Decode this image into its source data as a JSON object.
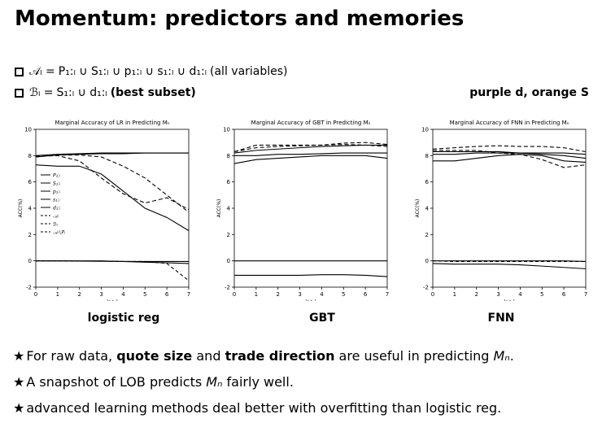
{
  "slide": {
    "title": "Momentum: predictors and memories",
    "def_a_lhs": "𝒜ₗ = ",
    "def_a_rhs": "P₁:ₗ ∪ S₁:ₗ ∪ p₁:ₗ ∪ s₁:ₗ ∪ d₁:ₗ",
    "def_a_note": "(all variables)",
    "def_b_lhs": "ℬₗ = ",
    "def_b_rhs": "S₁:ₗ ∪ d₁:ₗ",
    "def_b_note": "(best subset)",
    "color_note": "purple d, orange S",
    "captions": [
      "logistic reg",
      "GBT",
      "FNN"
    ],
    "bullets": [
      {
        "star": "★",
        "pre": "For raw data, ",
        "b1": "quote size",
        "mid": " and ",
        "b2": "trade direction",
        "post": " are useful in predicting ",
        "math": "Mₙ",
        "end": "."
      },
      {
        "star": "★",
        "pre": "A snapshot of LOB predicts ",
        "math": "Mₙ",
        "post": " fairly well."
      },
      {
        "star": "★",
        "pre": "advanced learning methods deal better with overfitting than logistic reg."
      }
    ]
  },
  "chart_data": [
    {
      "type": "line",
      "title": "Marginal Accuracy of LR in Predicting Mₙ",
      "xlabel": "log₂l",
      "ylabel": "ACC(%)",
      "x": [
        0,
        1,
        2,
        3,
        4,
        5,
        6,
        7
      ],
      "xlim": [
        0,
        7
      ],
      "ylim": [
        -2,
        10
      ],
      "yticks": [
        -2,
        0,
        2,
        4,
        6,
        8,
        10
      ],
      "legend": "left",
      "series": [
        {
          "name": "P₁:ₗ",
          "values": [
            7.9,
            8.05,
            8.1,
            8.15,
            8.15,
            8.2,
            8.2,
            8.2
          ],
          "dash": ""
        },
        {
          "name": "S₁:ₗ",
          "values": [
            7.3,
            7.2,
            7.2,
            6.6,
            5.3,
            4.0,
            3.3,
            2.3
          ],
          "dash": ""
        },
        {
          "name": "p₁:ₗ",
          "values": [
            0.0,
            0.0,
            0.0,
            0.0,
            -0.05,
            -0.1,
            -0.15,
            -0.2
          ],
          "dash": ""
        },
        {
          "name": "s₁:ₗ",
          "values": [
            0.0,
            0.0,
            -0.02,
            -0.03,
            -0.05,
            -0.05,
            -0.05,
            -0.05
          ],
          "dash": ""
        },
        {
          "name": "d₁:ₗ",
          "values": [
            8.0,
            8.1,
            8.15,
            8.2,
            8.2,
            8.2,
            8.2,
            8.2
          ],
          "dash": ""
        },
        {
          "name": "𝒜ₗ",
          "values": [
            7.9,
            8.05,
            8.05,
            7.9,
            7.2,
            6.3,
            5.0,
            3.7
          ],
          "dash": "5,3"
        },
        {
          "name": "ℬₗ",
          "values": [
            7.95,
            8.0,
            7.6,
            6.3,
            5.1,
            4.4,
            4.8,
            3.9
          ],
          "dash": "5,3"
        },
        {
          "name": "𝒜ₗ∖Pₗ",
          "values": [
            0.0,
            0.0,
            -0.02,
            -0.02,
            -0.05,
            -0.05,
            -0.2,
            -1.5
          ],
          "dash": "4,3"
        }
      ]
    },
    {
      "type": "line",
      "title": "Marginal Accuracy of GBT in Predicting Mₙ",
      "xlabel": "log₂l",
      "ylabel": "ACC(%)",
      "x": [
        0,
        1,
        2,
        3,
        4,
        5,
        6,
        7
      ],
      "xlim": [
        0,
        7
      ],
      "ylim": [
        -2,
        10
      ],
      "yticks": [
        -2,
        0,
        2,
        4,
        6,
        8,
        10
      ],
      "series": [
        {
          "values": [
            8.2,
            8.4,
            8.5,
            8.6,
            8.7,
            8.75,
            8.8,
            8.8
          ],
          "dash": ""
        },
        {
          "values": [
            7.4,
            7.7,
            7.8,
            7.9,
            8.0,
            8.0,
            8.0,
            7.8
          ],
          "dash": ""
        },
        {
          "values": [
            8.0,
            8.0,
            8.1,
            8.1,
            8.15,
            8.2,
            8.2,
            8.2
          ],
          "dash": ""
        },
        {
          "values": [
            0.0,
            0.0,
            0.0,
            0.0,
            0.0,
            0.0,
            0.0,
            0.0
          ],
          "dash": ""
        },
        {
          "values": [
            -1.1,
            -1.1,
            -1.1,
            -1.1,
            -1.05,
            -1.05,
            -1.1,
            -1.2
          ],
          "dash": ""
        },
        {
          "values": [
            8.3,
            8.6,
            8.7,
            8.75,
            8.8,
            8.85,
            8.8,
            8.7
          ],
          "dash": "5,3"
        },
        {
          "values": [
            8.3,
            8.8,
            8.8,
            8.8,
            8.8,
            8.95,
            9.0,
            8.85
          ],
          "dash": "5,3"
        }
      ]
    },
    {
      "type": "line",
      "title": "Marginal Accuracy of FNN in Predicting Mₙ",
      "xlabel": "log₂l",
      "ylabel": "ACC(%)",
      "x": [
        0,
        1,
        2,
        3,
        4,
        5,
        6,
        7
      ],
      "xlim": [
        0,
        7
      ],
      "ylim": [
        -2,
        10
      ],
      "yticks": [
        -2,
        0,
        2,
        4,
        6,
        8,
        10
      ],
      "series": [
        {
          "values": [
            8.3,
            8.3,
            8.3,
            8.3,
            8.2,
            8.1,
            8.0,
            7.8
          ],
          "dash": ""
        },
        {
          "values": [
            7.6,
            7.6,
            7.8,
            8.0,
            8.1,
            8.0,
            7.6,
            7.5
          ],
          "dash": ""
        },
        {
          "values": [
            8.1,
            8.1,
            8.2,
            8.2,
            8.2,
            8.2,
            8.2,
            8.1
          ],
          "dash": ""
        },
        {
          "values": [
            -0.2,
            -0.25,
            -0.25,
            -0.25,
            -0.3,
            -0.4,
            -0.5,
            -0.6
          ],
          "dash": ""
        },
        {
          "values": [
            0.0,
            0.0,
            0.0,
            0.0,
            0.0,
            0.0,
            0.0,
            -0.05
          ],
          "dash": ""
        },
        {
          "values": [
            8.5,
            8.6,
            8.7,
            8.75,
            8.7,
            8.7,
            8.6,
            8.3
          ],
          "dash": "5,3"
        },
        {
          "values": [
            8.4,
            8.4,
            8.4,
            8.2,
            8.1,
            7.7,
            7.1,
            7.3
          ],
          "dash": "5,3"
        },
        {
          "values": [
            0.0,
            -0.05,
            -0.05,
            -0.05,
            -0.05,
            -0.05,
            -0.05,
            -0.05
          ],
          "dash": "4,3"
        }
      ]
    }
  ]
}
